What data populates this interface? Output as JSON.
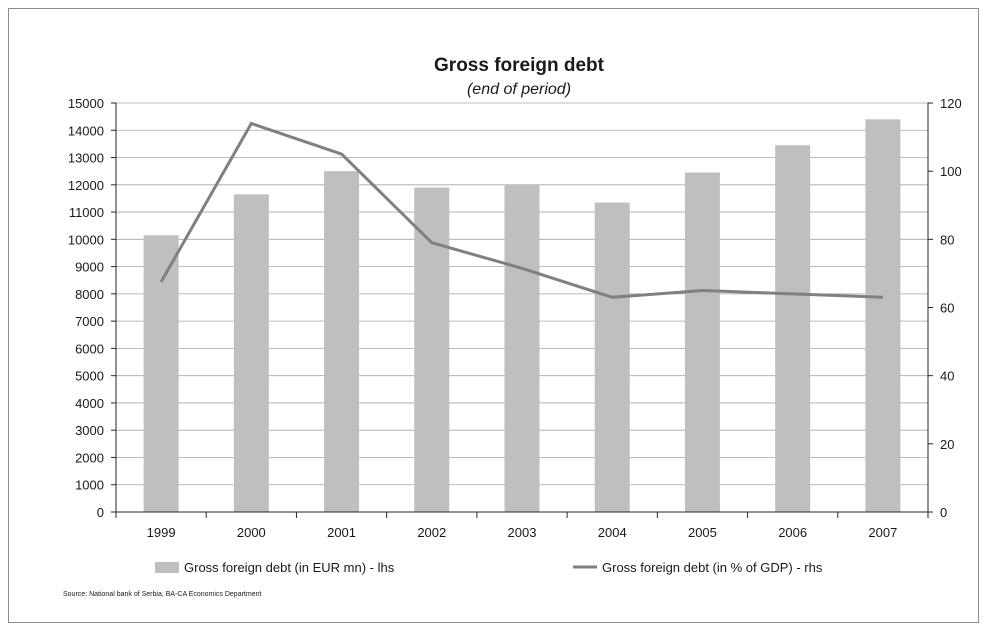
{
  "chart_data": {
    "type": "bar",
    "title": "Gross foreign debt",
    "subtitle": "(end of period)",
    "categories": [
      "1999",
      "2000",
      "2001",
      "2002",
      "2003",
      "2004",
      "2005",
      "2006",
      "2007"
    ],
    "series": [
      {
        "name": "Gross foreign debt (in EUR mn) - lhs",
        "type": "bar",
        "axis": "left",
        "color": "#bfbfbf",
        "values": [
          10150,
          11650,
          12500,
          11900,
          12000,
          11350,
          12450,
          13450,
          14400
        ]
      },
      {
        "name": "Gross foreign debt (in % of GDP) - rhs",
        "type": "line",
        "axis": "right",
        "color": "#808080",
        "values": [
          67.5,
          114,
          105,
          79,
          71.5,
          63,
          65,
          64,
          63
        ]
      }
    ],
    "y_left": {
      "range": [
        0,
        15000
      ],
      "ticks": [
        "0",
        "1000",
        "2000",
        "3000",
        "4000",
        "5000",
        "6000",
        "7000",
        "8000",
        "9000",
        "10000",
        "11000",
        "12000",
        "13000",
        "14000",
        "15000"
      ]
    },
    "y_right": {
      "range": [
        0,
        120
      ],
      "ticks": [
        "0",
        "20",
        "40",
        "60",
        "80",
        "100",
        "120"
      ]
    },
    "grid": true,
    "legend_position": "bottom",
    "source": "Source: National bank of Serbia, BA-CA Economics Department"
  }
}
